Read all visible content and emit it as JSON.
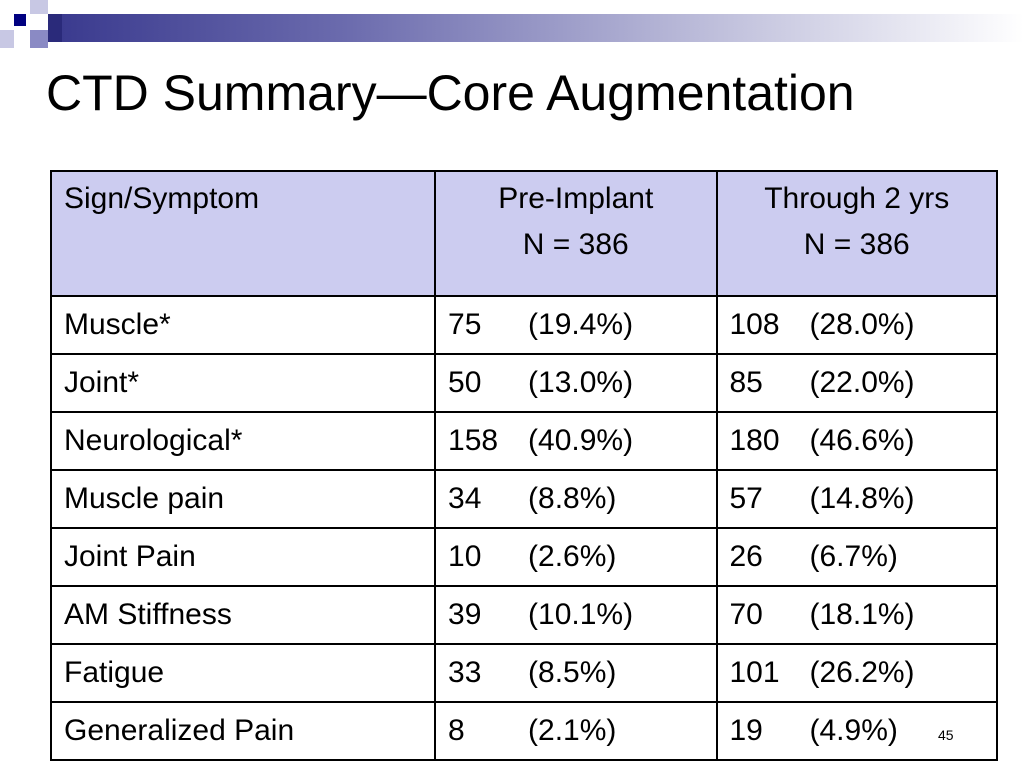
{
  "slide": {
    "title": "CTD Summary—Core Augmentation",
    "page_number": "45"
  },
  "table": {
    "headers": {
      "sign_symptom": "Sign/Symptom",
      "pre_implant": "Pre-Implant",
      "pre_implant_n": "N = 386",
      "through_2yrs": "Through 2 yrs",
      "through_2yrs_n": "N = 386"
    },
    "rows": [
      {
        "label": "Muscle*",
        "pre_n": "75",
        "pre_pct": "(19.4%)",
        "post_n": "108",
        "post_pct": "(28.0%)"
      },
      {
        "label": "Joint*",
        "pre_n": "50",
        "pre_pct": "(13.0%)",
        "post_n": "85",
        "post_pct": "(22.0%)"
      },
      {
        "label": "Neurological*",
        "pre_n": "158",
        "pre_pct": "(40.9%)",
        "post_n": "180",
        "post_pct": "(46.6%)"
      },
      {
        "label": "Muscle pain",
        "pre_n": "34",
        "pre_pct": "(8.8%)",
        "post_n": "57",
        "post_pct": "(14.8%)"
      },
      {
        "label": "Joint Pain",
        "pre_n": "10",
        "pre_pct": "(2.6%)",
        "post_n": "26",
        "post_pct": "(6.7%)"
      },
      {
        "label": "AM Stiffness",
        "pre_n": "39",
        "pre_pct": "(10.1%)",
        "post_n": "70",
        "post_pct": "(18.1%)"
      },
      {
        "label": "Fatigue",
        "pre_n": "33",
        "pre_pct": "(8.5%)",
        "post_n": "101",
        "post_pct": "(26.2%)"
      },
      {
        "label": "Generalized Pain",
        "pre_n": "8",
        "pre_pct": "(2.1%)",
        "post_n": "19",
        "post_pct": "(4.9%)"
      }
    ]
  },
  "colors": {
    "header_fill": "#ccccf0",
    "accent_dark": "#000080",
    "accent_light": "#9a9acc"
  }
}
